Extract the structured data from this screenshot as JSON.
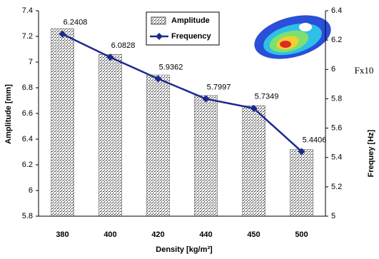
{
  "chart_data": {
    "type": "bar",
    "xlabel": "Density [kg/m³]",
    "ylabel": "Amplitude [mm]",
    "y2label": "Frequey [Hz]",
    "annotation": "Fx10",
    "categories": [
      "380",
      "400",
      "420",
      "440",
      "450",
      "500"
    ],
    "series": [
      {
        "name": "Amplitude",
        "type": "bar",
        "color": "#9a9a9a",
        "values": [
          7.26,
          7.06,
          6.9,
          6.74,
          6.66,
          6.32
        ]
      },
      {
        "name": "Frequency",
        "type": "line",
        "axis": "y2",
        "color": "#1c2a8c",
        "values": [
          6.2408,
          6.0828,
          5.9362,
          5.7997,
          5.7349,
          5.4406
        ]
      }
    ],
    "ylim": [
      5.8,
      7.4
    ],
    "yticks": [
      5.8,
      6,
      6.2,
      6.4,
      6.6,
      6.8,
      7,
      7.2,
      7.4
    ],
    "y2lim": [
      5,
      6.4
    ],
    "y2ticks": [
      5,
      5.2,
      5.4,
      5.6,
      5.8,
      6,
      6.2,
      6.4
    ],
    "grid": false
  }
}
